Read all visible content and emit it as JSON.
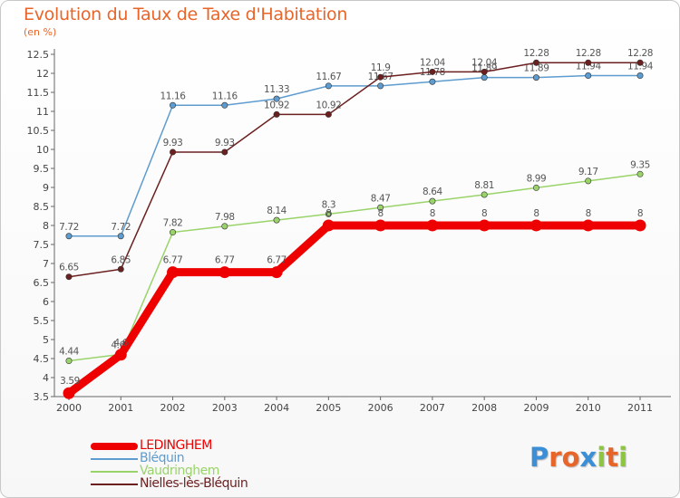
{
  "title": "Evolution du Taux de Taxe d'Habitation",
  "subtitle": "(en %)",
  "logo": {
    "text": "Proxiti",
    "colors": [
      "#3a8fd6",
      "#e8652a",
      "#e8652a",
      "#3a8fd6",
      "#8cc63f",
      "#e8652a",
      "#8cc63f"
    ]
  },
  "chart_data": {
    "type": "line",
    "x": [
      2000,
      2001,
      2002,
      2003,
      2004,
      2005,
      2006,
      2007,
      2008,
      2009,
      2010,
      2011
    ],
    "x_tick_labels": [
      "2000",
      "2001",
      "2002",
      "2003",
      "2004",
      "2005",
      "2006",
      "2007",
      "2008",
      "2009",
      "2010",
      "2011"
    ],
    "ylim": [
      3.5,
      12.5
    ],
    "y_ticks": [
      3.5,
      4,
      4.5,
      5,
      5.5,
      6,
      6.5,
      7,
      7.5,
      8,
      8.5,
      9,
      9.5,
      10,
      10.5,
      11,
      11.5,
      12,
      12.5
    ],
    "y_tick_labels": [
      "3.5",
      "4",
      "4.5",
      "5",
      "5.5",
      "6",
      "6.5",
      "7",
      "7.5",
      "8",
      "8.5",
      "9",
      "9.5",
      "10",
      "10.5",
      "11",
      "11.5",
      "12",
      "12.5"
    ],
    "grid": false,
    "legend_position": "bottom-left",
    "series": [
      {
        "name": "Bléquin",
        "color": "#5e9ccf",
        "values": [
          7.72,
          7.72,
          11.16,
          11.16,
          11.33,
          11.67,
          11.67,
          11.78,
          11.89,
          11.89,
          11.94,
          11.94
        ],
        "labels": [
          "7.72",
          "7.72",
          "11.16",
          "11.16",
          "11.33",
          "11.67",
          "11.67",
          "11.78",
          "11.89",
          "11.89",
          "11.94",
          "11.94"
        ]
      },
      {
        "name": "Nielles-lès-Bléquin",
        "color": "#6b1f1f",
        "values": [
          6.65,
          6.85,
          9.93,
          9.93,
          10.92,
          10.92,
          11.9,
          12.04,
          12.04,
          12.28,
          12.28,
          12.28
        ],
        "labels": [
          "6.65",
          "6.85",
          "9.93",
          "9.93",
          "10.92",
          "10.92",
          "11.9",
          "12.04",
          "12.04",
          "12.28",
          "12.28",
          "12.28"
        ]
      },
      {
        "name": "Vaudringhem",
        "color": "#9ad36a",
        "values": [
          4.44,
          4.61,
          7.82,
          7.98,
          8.14,
          8.3,
          8.47,
          8.64,
          8.81,
          8.99,
          9.17,
          9.35
        ],
        "labels": [
          "4.44",
          "4.61",
          "7.82",
          "7.98",
          "8.14",
          "8.3",
          "8.47",
          "8.64",
          "8.81",
          "8.99",
          "9.17",
          "9.35"
        ]
      },
      {
        "name": "LEDINGHEM",
        "color": "#ee0000",
        "values": [
          3.59,
          4.6,
          6.77,
          6.77,
          6.77,
          8,
          8,
          8,
          8,
          8,
          8,
          8
        ],
        "labels": [
          "3.59",
          "4.6",
          "6.77",
          "6.77",
          "6.77",
          "8",
          "8",
          "8",
          "8",
          "8",
          "8",
          "8"
        ]
      }
    ],
    "legend": [
      {
        "name": "LEDINGHEM",
        "color": "#ee0000"
      },
      {
        "name": "Bléquin",
        "color": "#5e9ccf"
      },
      {
        "name": "Vaudringhem",
        "color": "#9ad36a"
      },
      {
        "name": "Nielles-lès-Bléquin",
        "color": "#6b1f1f"
      }
    ]
  }
}
